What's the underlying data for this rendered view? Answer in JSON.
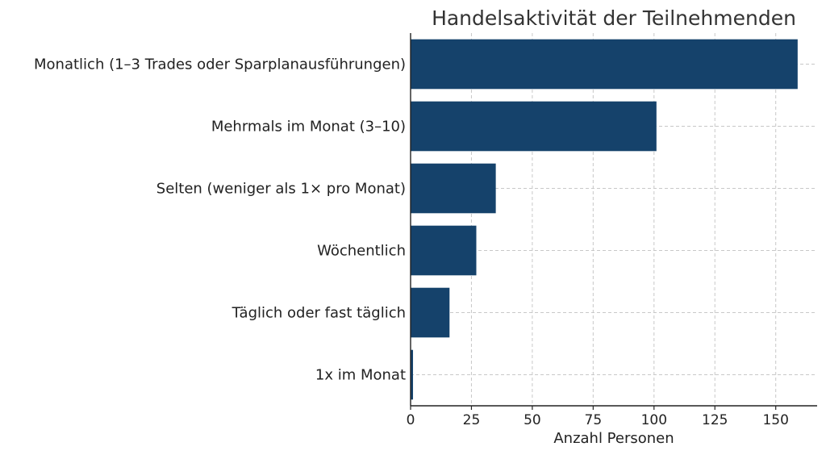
{
  "chart_data": {
    "type": "bar",
    "orientation": "horizontal",
    "title": "Handelsaktivität der Teilnehmenden",
    "xlabel": "Anzahl Personen",
    "ylabel": "",
    "categories": [
      "Monatlich (1–3 Trades oder Sparplanausführungen)",
      "Mehrmals im Monat (3–10)",
      "Selten (weniger als 1× pro Monat)",
      "Wöchentlich",
      "Täglich oder fast täglich",
      "1x im Monat"
    ],
    "values": [
      159,
      101,
      35,
      27,
      16,
      1
    ],
    "xlim": [
      0,
      167
    ],
    "xticks": [
      0,
      25,
      50,
      75,
      100,
      125,
      150
    ],
    "grid": true,
    "bar_color": "#15426b"
  }
}
